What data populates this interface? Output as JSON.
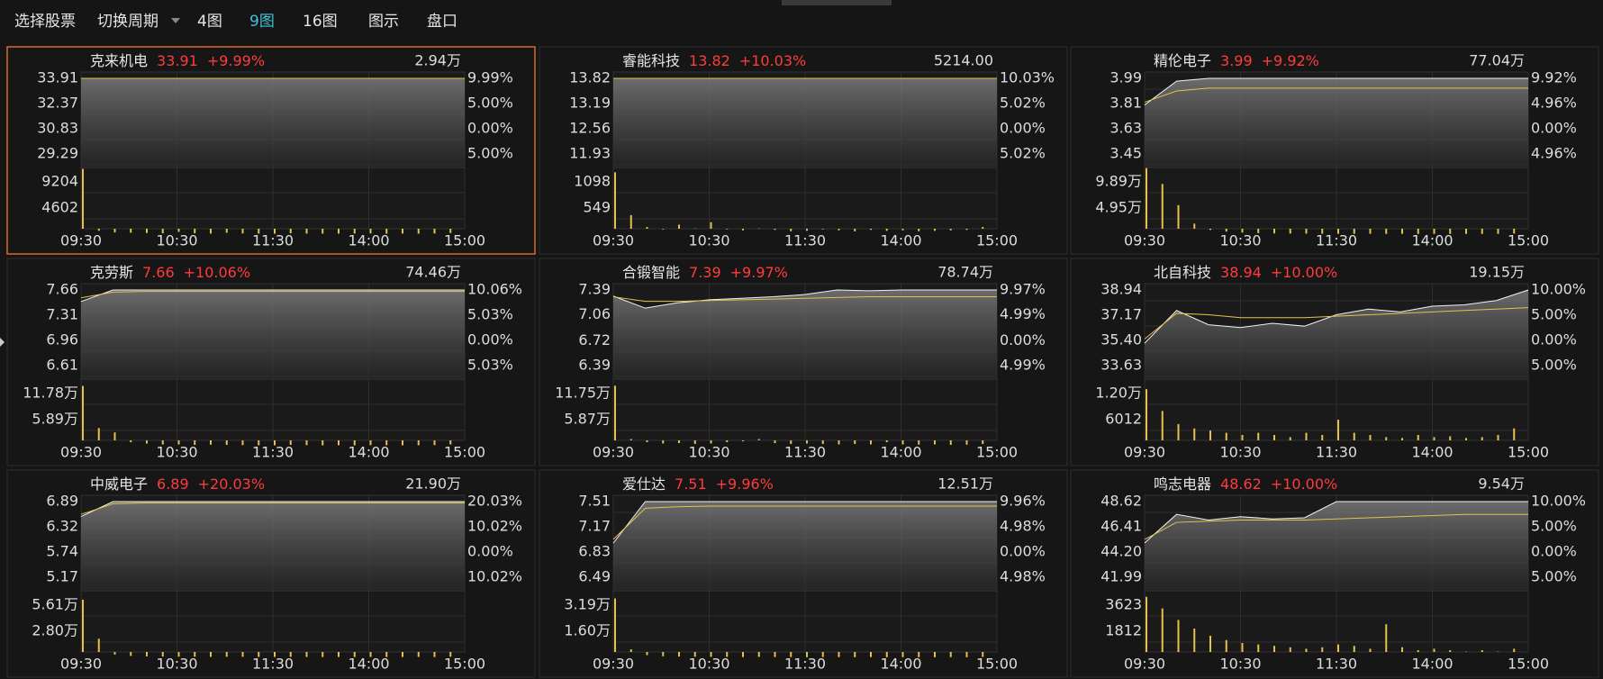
{
  "toolbar": {
    "items": [
      "选择股票",
      "切换周期",
      "4图",
      "9图",
      "16图",
      "图示",
      "盘口"
    ],
    "active": 3
  },
  "time_labels": [
    "09:30",
    "10:30",
    "11:30",
    "14:00",
    "15:00"
  ],
  "panels": [
    {
      "name": "克来机电",
      "price": "33.91",
      "change": "+9.99%",
      "volume": "2.94万",
      "selected": true,
      "price_ticks": [
        33.91,
        32.37,
        30.83,
        29.29
      ],
      "pct_ticks": [
        "9.99%",
        "5.00%",
        "0.00%",
        "5.00%"
      ],
      "vol_ticks": [
        9204,
        4602
      ],
      "price_line": [
        33.91,
        33.91,
        33.91,
        33.91,
        33.91,
        33.91,
        33.91,
        33.91,
        33.91,
        33.91,
        33.91,
        33.91,
        33.91
      ],
      "avg_line": [
        33.91,
        33.91,
        33.91,
        33.91,
        33.91,
        33.91,
        33.91,
        33.91,
        33.91,
        33.91,
        33.91,
        33.91,
        33.91
      ],
      "volumes": [
        11500,
        600,
        300,
        250,
        200,
        150,
        400,
        150,
        100,
        250,
        120,
        100,
        80,
        150,
        100,
        80,
        90,
        100,
        120,
        80,
        100,
        90,
        110,
        200
      ]
    },
    {
      "name": "睿能科技",
      "price": "13.82",
      "change": "+10.03%",
      "volume": "5214.00",
      "price_ticks": [
        13.82,
        13.19,
        12.56,
        11.93
      ],
      "pct_ticks": [
        "10.03%",
        "5.02%",
        "0.00%",
        "5.02%"
      ],
      "vol_ticks": [
        1098,
        549
      ],
      "price_line": [
        13.82,
        13.82,
        13.82,
        13.82,
        13.82,
        13.82,
        13.82,
        13.82,
        13.82,
        13.82,
        13.82,
        13.82,
        13.82
      ],
      "avg_line": [
        13.82,
        13.82,
        13.82,
        13.82,
        13.82,
        13.82,
        13.82,
        13.82,
        13.82,
        13.82,
        13.82,
        13.82,
        13.82
      ],
      "volumes": [
        1300,
        400,
        150,
        100,
        200,
        120,
        250,
        100,
        80,
        120,
        90,
        60,
        70,
        100,
        80,
        60,
        90,
        70,
        80,
        60,
        70,
        80,
        90,
        150
      ]
    },
    {
      "name": "精伦电子",
      "price": "3.99",
      "change": "+9.92%",
      "volume": "77.04万",
      "price_ticks": [
        3.99,
        3.81,
        3.63,
        3.45
      ],
      "pct_ticks": [
        "9.92%",
        "4.96%",
        "0.00%",
        "4.96%"
      ],
      "vol_ticks": [
        {
          "value": 98900,
          "label": "9.89万"
        },
        {
          "value": 49500,
          "label": "4.95万"
        }
      ],
      "price_line": [
        3.8,
        3.97,
        3.99,
        3.99,
        3.99,
        3.99,
        3.99,
        3.99,
        3.99,
        3.99,
        3.99,
        3.99,
        3.99
      ],
      "avg_line": [
        3.82,
        3.9,
        3.92,
        3.92,
        3.92,
        3.92,
        3.92,
        3.92,
        3.92,
        3.92,
        3.92,
        3.92,
        3.92
      ],
      "volumes": [
        125000,
        95000,
        55000,
        20000,
        8000,
        5000,
        3000,
        2000,
        1500,
        1200,
        1000,
        900,
        800,
        700,
        800,
        600,
        700,
        500,
        600,
        500,
        600,
        500,
        700,
        1200
      ]
    },
    {
      "name": "克劳斯",
      "price": "7.66",
      "change": "+10.06%",
      "volume": "74.46万",
      "price_ticks": [
        7.66,
        7.31,
        6.96,
        6.61
      ],
      "pct_ticks": [
        "10.06%",
        "5.03%",
        "0.00%",
        "5.03%"
      ],
      "vol_ticks": [
        {
          "value": 117800,
          "label": "11.78万"
        },
        {
          "value": 58900,
          "label": "5.89万"
        }
      ],
      "price_line": [
        7.5,
        7.66,
        7.66,
        7.66,
        7.66,
        7.66,
        7.66,
        7.66,
        7.66,
        7.66,
        7.66,
        7.66,
        7.66
      ],
      "avg_line": [
        7.55,
        7.63,
        7.64,
        7.64,
        7.64,
        7.64,
        7.64,
        7.64,
        7.64,
        7.64,
        7.64,
        7.64,
        7.64
      ],
      "volumes": [
        135000,
        40000,
        30000,
        8000,
        5000,
        3000,
        3000,
        2000,
        2500,
        2000,
        1500,
        1200,
        1000,
        2000,
        1500,
        1000,
        1200,
        1000,
        1500,
        1200,
        1000,
        1200,
        1500,
        3000
      ]
    },
    {
      "name": "合锻智能",
      "price": "7.39",
      "change": "+9.97%",
      "volume": "78.74万",
      "price_ticks": [
        7.39,
        7.06,
        6.72,
        6.39
      ],
      "pct_ticks": [
        "9.97%",
        "4.99%",
        "0.00%",
        "4.99%"
      ],
      "vol_ticks": [
        {
          "value": 117500,
          "label": "11.75万"
        },
        {
          "value": 58700,
          "label": "5.87万"
        }
      ],
      "price_line": [
        7.31,
        7.15,
        7.22,
        7.26,
        7.28,
        7.3,
        7.33,
        7.39,
        7.38,
        7.39,
        7.39,
        7.39,
        7.39
      ],
      "avg_line": [
        7.3,
        7.24,
        7.24,
        7.25,
        7.26,
        7.27,
        7.28,
        7.29,
        7.3,
        7.3,
        7.3,
        7.3,
        7.3
      ],
      "volumes": [
        135000,
        15000,
        8000,
        5000,
        6000,
        4000,
        5000,
        8000,
        10000,
        15000,
        6000,
        4000,
        5000,
        4000,
        3000,
        4000,
        3000,
        8000,
        3000,
        2500,
        3000,
        2000,
        2500,
        4000
      ]
    },
    {
      "name": "北自科技",
      "price": "38.94",
      "change": "+10.00%",
      "volume": "19.15万",
      "price_ticks": [
        38.94,
        37.17,
        {
          "value": 35.4,
          "label": "35.40"
        },
        33.63
      ],
      "pct_ticks": [
        "10.00%",
        "5.00%",
        "0.00%",
        "5.00%"
      ],
      "vol_ticks": [
        {
          "value": 12000,
          "label": "1.20万"
        },
        6012
      ],
      "price_line": [
        35.2,
        37.5,
        36.5,
        36.3,
        36.6,
        36.4,
        37.2,
        37.6,
        37.4,
        37.8,
        37.9,
        38.2,
        38.94
      ],
      "avg_line": [
        35.5,
        37.3,
        37.2,
        37,
        37,
        37,
        37.1,
        37.2,
        37.3,
        37.4,
        37.5,
        37.6,
        37.7
      ],
      "volumes": [
        13000,
        8000,
        5000,
        4000,
        3500,
        3000,
        2500,
        3000,
        2500,
        2000,
        3000,
        2500,
        6000,
        3000,
        2500,
        2000,
        1800,
        2500,
        2000,
        2200,
        1800,
        2000,
        2500,
        4000
      ]
    },
    {
      "name": "中威电子",
      "price": "6.89",
      "change": "+20.03%",
      "volume": "21.90万",
      "price_ticks": [
        6.89,
        6.32,
        5.74,
        5.17
      ],
      "pct_ticks": [
        "20.03%",
        "10.02%",
        "0.00%",
        "10.02%"
      ],
      "vol_ticks": [
        {
          "value": 56100,
          "label": "5.61万"
        },
        {
          "value": 28000,
          "label": "2.80万"
        }
      ],
      "price_line": [
        6.55,
        6.89,
        6.89,
        6.89,
        6.89,
        6.89,
        6.89,
        6.89,
        6.89,
        6.89,
        6.89,
        6.89,
        6.89
      ],
      "avg_line": [
        6.6,
        6.84,
        6.86,
        6.86,
        6.86,
        6.86,
        6.86,
        6.86,
        6.86,
        6.86,
        6.86,
        6.86,
        6.86
      ],
      "volumes": [
        62000,
        20000,
        3000,
        1500,
        1000,
        800,
        700,
        600,
        500,
        600,
        500,
        400,
        400,
        500,
        400,
        300,
        400,
        300,
        400,
        300,
        300,
        400,
        300,
        600
      ]
    },
    {
      "name": "爱仕达",
      "price": "7.51",
      "change": "+9.96%",
      "volume": "12.51万",
      "price_ticks": [
        7.51,
        7.17,
        6.83,
        6.49
      ],
      "pct_ticks": [
        "9.96%",
        "4.98%",
        "0.00%",
        "4.98%"
      ],
      "vol_ticks": [
        {
          "value": 31900,
          "label": "3.19万"
        },
        {
          "value": 16000,
          "label": "1.60万"
        }
      ],
      "price_line": [
        6.95,
        7.51,
        7.51,
        7.51,
        7.51,
        7.51,
        7.51,
        7.51,
        7.51,
        7.51,
        7.51,
        7.51,
        7.51
      ],
      "avg_line": [
        7.0,
        7.42,
        7.44,
        7.45,
        7.45,
        7.45,
        7.45,
        7.45,
        7.45,
        7.45,
        7.45,
        7.45,
        7.45
      ],
      "volumes": [
        36000,
        5000,
        1500,
        800,
        600,
        500,
        400,
        400,
        300,
        400,
        300,
        300,
        250,
        300,
        250,
        200,
        250,
        200,
        250,
        200,
        200,
        250,
        200,
        400
      ]
    },
    {
      "name": "鸣志电器",
      "price": "48.62",
      "change": "+10.00%",
      "volume": "9.54万",
      "price_ticks": [
        48.62,
        46.41,
        {
          "value": 44.2,
          "label": "44.20"
        },
        41.99
      ],
      "pct_ticks": [
        "10.00%",
        "5.00%",
        "0.00%",
        "5.00%"
      ],
      "vol_ticks": [
        3623,
        1812
      ],
      "price_line": [
        45.0,
        47.5,
        47.0,
        47.3,
        47.1,
        47.2,
        48.62,
        48.62,
        48.62,
        48.62,
        48.62,
        48.62,
        48.62
      ],
      "avg_line": [
        45.3,
        46.8,
        46.9,
        47.0,
        47.0,
        47.0,
        47.1,
        47.2,
        47.3,
        47.4,
        47.5,
        47.5,
        47.5
      ],
      "volumes": [
        4200,
        3400,
        2600,
        2000,
        1500,
        1200,
        1000,
        900,
        800,
        700,
        600,
        700,
        900,
        800,
        600,
        2300,
        700,
        500,
        600,
        500,
        400,
        500,
        400,
        600
      ]
    }
  ]
}
